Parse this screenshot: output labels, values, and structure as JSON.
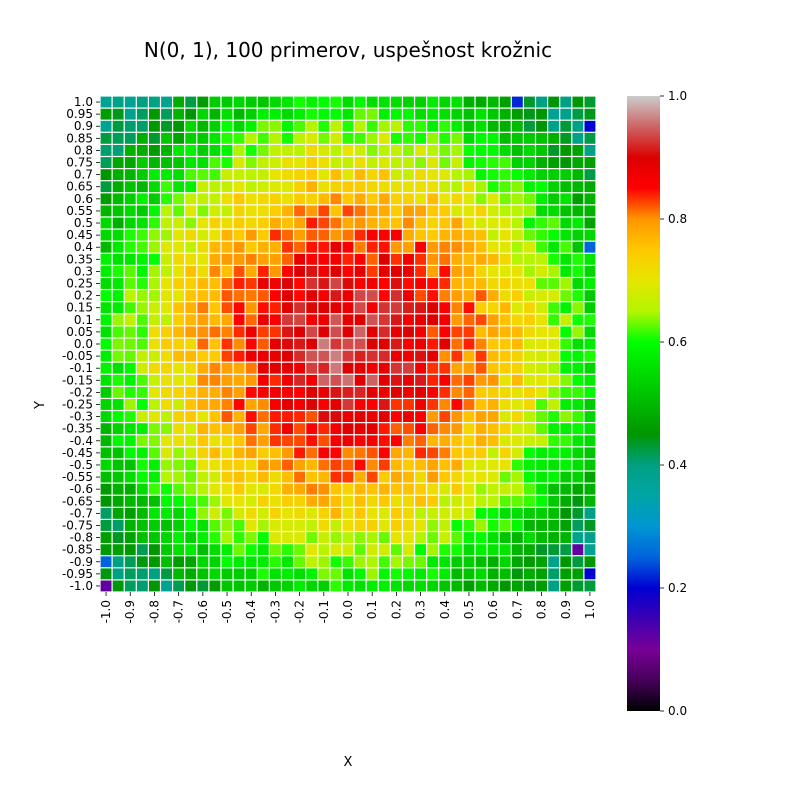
{
  "chart_data": {
    "type": "heatmap",
    "title": "N(0, 1), 100 primerov, uspešnost krožnic",
    "xlabel": "X",
    "ylabel": "Y",
    "x_tick_labels": [
      "-1.0",
      "-0.9",
      "-0.8",
      "-0.7",
      "-0.6",
      "-0.5",
      "-0.4",
      "-0.3",
      "-0.2",
      "-0.1",
      "0.0",
      "0.1",
      "0.2",
      "0.3",
      "0.4",
      "0.5",
      "0.6",
      "0.7",
      "0.8",
      "0.9",
      "1.0"
    ],
    "y_tick_labels": [
      "1.0",
      "0.95",
      "0.9",
      "0.85",
      "0.8",
      "0.75",
      "0.7",
      "0.65",
      "0.6",
      "0.55",
      "0.5",
      "0.45",
      "0.4",
      "0.35",
      "0.3",
      "0.25",
      "0.2",
      "0.15",
      "0.1",
      "0.05",
      "0.0",
      "-0.05",
      "-0.1",
      "-0.15",
      "-0.2",
      "-0.25",
      "-0.3",
      "-0.35",
      "-0.4",
      "-0.45",
      "-0.5",
      "-0.55",
      "-0.6",
      "-0.65",
      "-0.7",
      "-0.75",
      "-0.8",
      "-0.85",
      "-0.9",
      "-0.95",
      "-1.0"
    ],
    "grid_size": 41,
    "value_model": "radial",
    "center": [
      0.0,
      0.0
    ],
    "peak_value": 0.93,
    "edge_value": 0.42,
    "colorbar": {
      "min": 0.0,
      "max": 1.0,
      "ticks": [
        "0.0",
        "0.2",
        "0.4",
        "0.6",
        "0.8",
        "1.0"
      ],
      "colormap": "nipy_spectral"
    },
    "special_cells": [
      {
        "x": -1.0,
        "y": -1.0,
        "value": 0.12
      },
      {
        "x": 1.0,
        "y": -0.95,
        "value": 0.2
      },
      {
        "x": 1.0,
        "y": 0.9,
        "value": 0.2
      },
      {
        "x": 0.95,
        "y": -0.85,
        "value": 0.12
      },
      {
        "x": 0.7,
        "y": 1.0,
        "value": 0.22
      },
      {
        "x": 1.0,
        "y": 0.4,
        "value": 0.25
      },
      {
        "x": -1.0,
        "y": -0.9,
        "value": 0.25
      }
    ]
  }
}
